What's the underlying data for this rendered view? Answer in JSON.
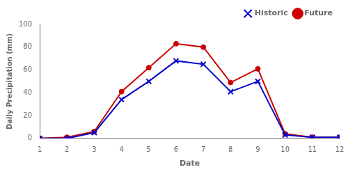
{
  "chart_data": {
    "type": "line",
    "x": [
      1,
      2,
      3,
      4,
      5,
      6,
      7,
      8,
      9,
      10,
      11,
      12
    ],
    "series": [
      {
        "name": "Historic",
        "color": "#0000cc",
        "marker": "x",
        "values": [
          0,
          0,
          5,
          34,
          50,
          68,
          65,
          41,
          50,
          3,
          1,
          1
        ]
      },
      {
        "name": "Future",
        "color": "#cc0000",
        "marker": "circle",
        "values": [
          0,
          1,
          6,
          41,
          62,
          83,
          80,
          49,
          61,
          4,
          1,
          1
        ]
      }
    ],
    "xlabel": "Date",
    "ylabel": "Daily Precipitation (mm)",
    "xlim": [
      1,
      12
    ],
    "ylim": [
      0,
      100
    ],
    "xticks": [
      1,
      2,
      3,
      4,
      5,
      6,
      7,
      8,
      9,
      10,
      11,
      12
    ],
    "yticks": [
      0,
      20,
      40,
      60,
      80,
      100
    ],
    "grid": false,
    "legend": "upper right"
  }
}
